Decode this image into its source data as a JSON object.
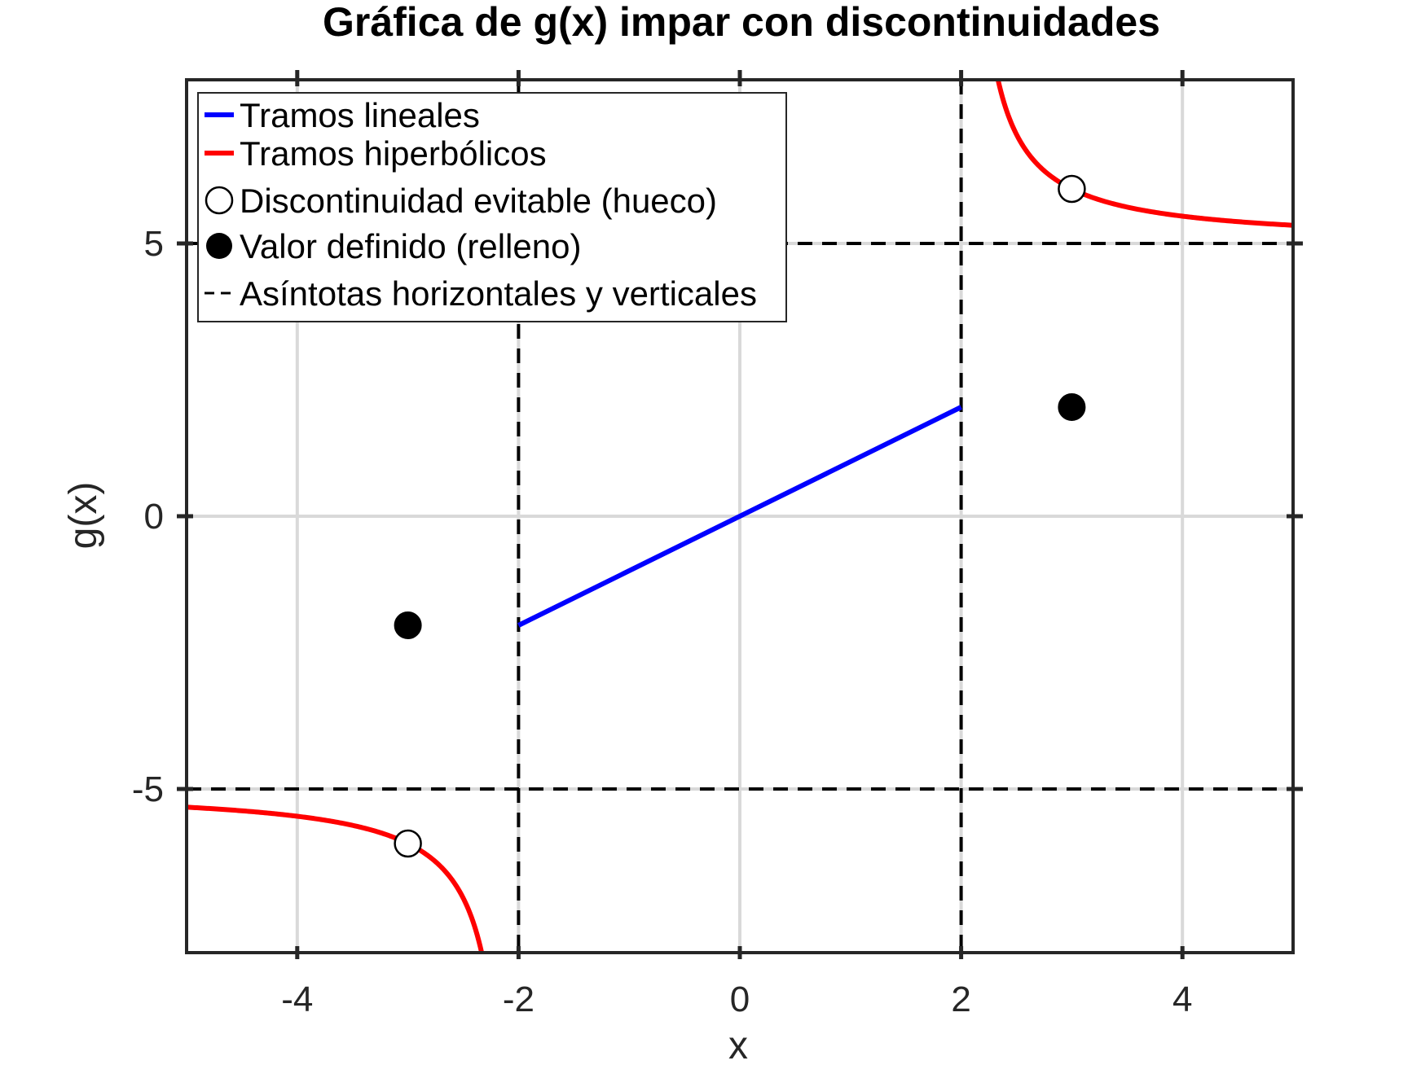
{
  "chart_data": {
    "type": "line",
    "title": "Gráfica de g(x) impar con discontinuidades",
    "xlabel": "x",
    "ylabel": "g(x)",
    "xlim": [
      -5,
      5
    ],
    "ylim": [
      -8,
      8
    ],
    "x_ticks": [
      -4,
      -2,
      0,
      2,
      4
    ],
    "y_ticks": [
      -5,
      0,
      5
    ],
    "x_tick_labels": [
      "-4",
      "-2",
      "0",
      "2",
      "4"
    ],
    "y_tick_labels": [
      "-5",
      "0",
      "5"
    ],
    "grid": true,
    "legend_position": "top-left",
    "colors": {
      "linear": "#0000ff",
      "hyperbolic": "#ff0000",
      "asymptote": "#000000",
      "grid": "#d9d9d9",
      "axes": "#262626"
    },
    "legend": [
      {
        "label": "Tramos lineales",
        "style": "line",
        "color": "#0000ff"
      },
      {
        "label": "Tramos hiperbólicos",
        "style": "line",
        "color": "#ff0000"
      },
      {
        "label": "Discontinuidad evitable (hueco)",
        "style": "open-circle",
        "color": "#000000"
      },
      {
        "label": "Valor definido (relleno)",
        "style": "filled-circle",
        "color": "#000000"
      },
      {
        "label": "Asíntotas horizontales y verticales",
        "style": "dashed",
        "color": "#000000"
      }
    ],
    "series": [
      {
        "label_ref": 0,
        "kind": "linear",
        "x": [
          -2,
          2
        ],
        "y": [
          -2,
          2
        ]
      },
      {
        "label_ref": 1,
        "kind": "hyperbolic-right",
        "x_range": [
          2.3333,
          5
        ],
        "formula_points": [
          [
            2.3333,
            8
          ],
          [
            2.5,
            7
          ],
          [
            3,
            6
          ],
          [
            4,
            5.5
          ],
          [
            5,
            5.333
          ]
        ]
      },
      {
        "label_ref": 1,
        "kind": "hyperbolic-left",
        "x_range": [
          -5,
          -2.3333
        ],
        "formula_points": [
          [
            -5,
            -5.333
          ],
          [
            -4,
            -5.5
          ],
          [
            -3,
            -6
          ],
          [
            -2.5,
            -7
          ],
          [
            -2.3333,
            -8
          ]
        ]
      }
    ],
    "open_points": [
      [
        3,
        6
      ],
      [
        -3,
        -6
      ]
    ],
    "filled_points": [
      [
        3,
        2
      ],
      [
        -3,
        -2
      ]
    ],
    "horizontal_asymptotes": [
      5,
      -5
    ],
    "vertical_asymptotes": [
      2,
      -2
    ]
  }
}
